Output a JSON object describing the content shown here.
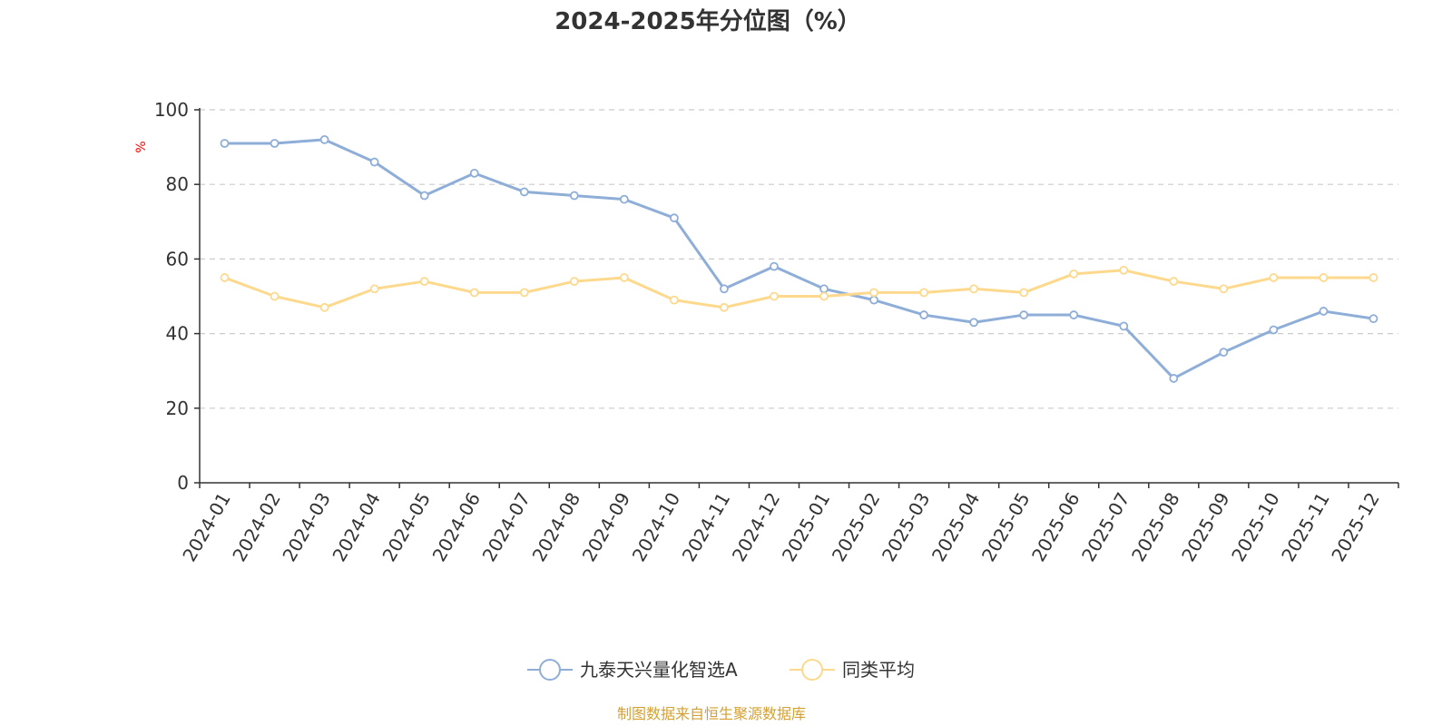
{
  "chart_data": {
    "type": "line",
    "title": "2024-2025年分位图（%）",
    "ylabel": "%",
    "xlabel": "",
    "ylim": [
      0,
      100
    ],
    "yticks": [
      0,
      20,
      40,
      60,
      80,
      100
    ],
    "grid": true,
    "legend_position": "bottom",
    "categories": [
      "2024-01",
      "2024-02",
      "2024-03",
      "2024-04",
      "2024-05",
      "2024-06",
      "2024-07",
      "2024-08",
      "2024-09",
      "2024-10",
      "2024-11",
      "2024-12",
      "2025-01",
      "2025-02",
      "2025-03",
      "2025-04",
      "2025-05",
      "2025-06",
      "2025-07",
      "2025-08",
      "2025-09",
      "2025-10",
      "2025-11",
      "2025-12"
    ],
    "series": [
      {
        "name": "九泰天兴量化智选A",
        "color": "#8eaed8",
        "values": [
          91,
          91,
          92,
          86,
          77,
          83,
          78,
          77,
          76,
          71,
          52,
          58,
          52,
          49,
          45,
          43,
          45,
          45,
          42,
          28,
          35,
          41,
          46,
          44
        ]
      },
      {
        "name": "同类平均",
        "color": "#fdd98e",
        "values": [
          55,
          50,
          47,
          52,
          54,
          51,
          51,
          54,
          55,
          49,
          47,
          50,
          50,
          51,
          51,
          52,
          51,
          56,
          57,
          54,
          52,
          55,
          55,
          55
        ]
      }
    ]
  },
  "colors": {
    "unit_label": "#ff0000",
    "source": "#d4a033",
    "grid": "#cccccc",
    "axis": "#333333"
  },
  "source_text": "制图数据来自恒生聚源数据库"
}
